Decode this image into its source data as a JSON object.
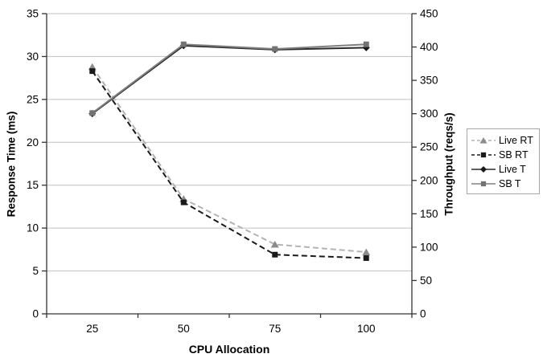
{
  "page": {
    "background": "#ffffff"
  },
  "chart_data": {
    "type": "line",
    "title": "",
    "xlabel": "CPU Allocation",
    "x_categories": [
      "25",
      "50",
      "75",
      "100"
    ],
    "left_axis": {
      "label": "Response Time (ms)",
      "min": 0,
      "max": 35,
      "step": 5
    },
    "right_axis": {
      "label": "Throughput (reqs/s)",
      "min": 0,
      "max": 450,
      "step": 50
    },
    "grid": {
      "horizontal": true,
      "color": "#c0c0c0"
    },
    "axis_color": "#333333",
    "legend_position": "right",
    "series": [
      {
        "name": "Live RT",
        "axis": "left",
        "marker": "triangle",
        "line_style": "dashed",
        "color": "#b3b3b3",
        "marker_color": "#8c8c8c",
        "values": [
          28.8,
          13.4,
          8.1,
          7.2
        ]
      },
      {
        "name": "SB RT",
        "axis": "left",
        "marker": "square",
        "line_style": "dashed",
        "color": "#1a1a1a",
        "marker_color": "#1a1a1a",
        "values": [
          28.3,
          13.0,
          6.9,
          6.5
        ]
      },
      {
        "name": "Live T",
        "axis": "right",
        "marker": "diamond",
        "line_style": "solid",
        "color": "#2b2b2b",
        "marker_color": "#1a1a1a",
        "values": [
          300,
          402,
          396,
          399
        ]
      },
      {
        "name": "SB T",
        "axis": "right",
        "marker": "square",
        "line_style": "solid",
        "color": "#808080",
        "marker_color": "#737373",
        "values": [
          301,
          404,
          397,
          404
        ]
      }
    ]
  }
}
